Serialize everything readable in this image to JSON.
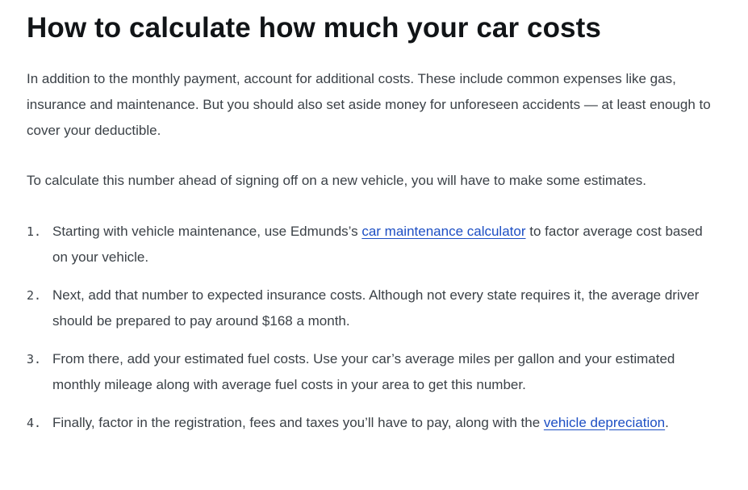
{
  "article": {
    "title": "How to calculate how much your car costs",
    "paragraphs": [
      "In addition to the monthly payment, account for additional costs. These include common expenses like gas, insurance and maintenance. But you should also set aside money for unforeseen accidents — at least enough to cover your deductible.",
      "To calculate this number ahead of signing off on a new vehicle, you will have to make some estimates."
    ],
    "steps": [
      {
        "number": "1.",
        "text_before": "Starting with vehicle maintenance, use Edmunds’s ",
        "link": "car maintenance calculator",
        "text_after": " to factor average cost based on your vehicle."
      },
      {
        "number": "2.",
        "text": "Next, add that number to expected insurance costs. Although not every state requires it, the average driver should be prepared to pay around $168 a month."
      },
      {
        "number": "3.",
        "text": "From there, add your estimated fuel costs. Use your car’s average miles per gallon and your estimated monthly mileage along with average fuel costs in your area to get this number."
      },
      {
        "number": "4.",
        "text_before": "Finally, factor in the registration, fees and taxes you’ll have to pay, along with the ",
        "link": "vehicle depreciation",
        "text_after": "."
      }
    ]
  },
  "colors": {
    "heading": "#111417",
    "body_text": "#3b4147",
    "link": "#1d4fc4",
    "background": "#ffffff"
  }
}
